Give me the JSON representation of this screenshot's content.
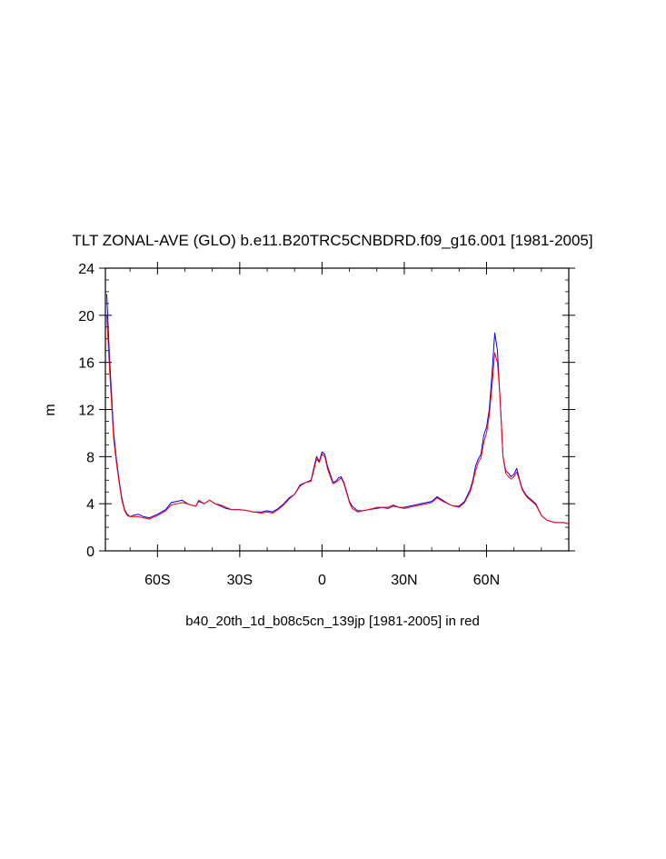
{
  "chart_data": {
    "type": "line",
    "title": "TLT ZONAL-AVE (GLO) b.e11.B20TRC5CNBDRD.f09_g16.001 [1981-2005]",
    "xlabel": "b40_20th_1d_b08c5cn_139jp [1981-2005] in red",
    "ylabel": "m",
    "xlim": [
      -79,
      90
    ],
    "ylim": [
      0,
      24
    ],
    "x_ticks": [
      {
        "value": -60,
        "label": "60S"
      },
      {
        "value": -30,
        "label": "30S"
      },
      {
        "value": 0,
        "label": "0"
      },
      {
        "value": 30,
        "label": "30N"
      },
      {
        "value": 60,
        "label": "60N"
      }
    ],
    "y_ticks": [
      0,
      4,
      8,
      12,
      16,
      20,
      24
    ],
    "grid": false,
    "series": [
      {
        "color": "#0000ff",
        "x": [
          -78.5,
          -77.5,
          -76,
          -75,
          -74,
          -73,
          -72,
          -71,
          -70,
          -69,
          -67,
          -65,
          -63,
          -60,
          -57,
          -55,
          -53,
          -51,
          -49,
          -48,
          -46,
          -45,
          -43,
          -41,
          -39,
          -37,
          -35,
          -33,
          -30,
          -27,
          -25,
          -22,
          -20,
          -18,
          -16,
          -14,
          -12,
          -10,
          -8,
          -6,
          -4,
          -3,
          -2,
          -1,
          0,
          1,
          2,
          3,
          4,
          5,
          6,
          7,
          8,
          9,
          10,
          11,
          13,
          15,
          17,
          20,
          22,
          24,
          26,
          28,
          30,
          32,
          34,
          36,
          38,
          40,
          42,
          44,
          46,
          48,
          50,
          52,
          54,
          55,
          56,
          57,
          58,
          59,
          60,
          61,
          62,
          63,
          64,
          65,
          66,
          67,
          68,
          69,
          70,
          71,
          72,
          73,
          74,
          75,
          76,
          77,
          78,
          80,
          82,
          85,
          88,
          90
        ],
        "y": [
          21.8,
          16.5,
          10.0,
          7.8,
          6.0,
          4.5,
          3.5,
          3.1,
          2.9,
          3.0,
          3.1,
          2.9,
          2.8,
          3.1,
          3.5,
          4.1,
          4.2,
          4.3,
          4.0,
          3.9,
          3.8,
          4.2,
          4.0,
          4.3,
          4.0,
          3.8,
          3.6,
          3.5,
          3.5,
          3.4,
          3.3,
          3.3,
          3.4,
          3.3,
          3.6,
          4.0,
          4.5,
          4.8,
          5.6,
          5.8,
          6.0,
          7.0,
          8.0,
          7.6,
          8.4,
          8.2,
          7.2,
          6.5,
          5.8,
          5.9,
          6.2,
          6.3,
          5.8,
          5.0,
          4.2,
          3.8,
          3.4,
          3.4,
          3.5,
          3.6,
          3.7,
          3.6,
          3.8,
          3.7,
          3.7,
          3.8,
          3.9,
          4.0,
          4.1,
          4.2,
          4.6,
          4.3,
          4.0,
          3.8,
          3.8,
          4.2,
          5.2,
          6.0,
          7.2,
          7.8,
          8.2,
          9.8,
          10.5,
          12.0,
          15.0,
          18.5,
          17.0,
          12.5,
          8.0,
          6.8,
          6.6,
          6.3,
          6.5,
          7.0,
          6.1,
          5.3,
          4.9,
          4.6,
          4.4,
          4.2,
          4.0,
          3.0,
          2.6,
          2.4,
          2.4,
          2.3
        ]
      },
      {
        "color": "#ff0000",
        "x": [
          -78.5,
          -77.5,
          -76,
          -75,
          -74,
          -73,
          -72,
          -71,
          -70,
          -69,
          -67,
          -65,
          -63,
          -60,
          -57,
          -55,
          -53,
          -51,
          -49,
          -48,
          -46,
          -45,
          -43,
          -41,
          -39,
          -37,
          -35,
          -33,
          -30,
          -27,
          -25,
          -22,
          -20,
          -18,
          -16,
          -14,
          -12,
          -10,
          -8,
          -6,
          -4,
          -3,
          -2,
          -1,
          0,
          1,
          2,
          3,
          4,
          5,
          6,
          7,
          8,
          9,
          10,
          11,
          13,
          15,
          17,
          20,
          22,
          24,
          26,
          28,
          30,
          32,
          34,
          36,
          38,
          40,
          42,
          44,
          46,
          48,
          50,
          52,
          54,
          55,
          56,
          57,
          58,
          59,
          60,
          61,
          62,
          63,
          64,
          65,
          66,
          67,
          68,
          69,
          70,
          71,
          72,
          73,
          74,
          75,
          76,
          77,
          78,
          80,
          82,
          85,
          88,
          90
        ],
        "y": [
          20.0,
          15.5,
          9.5,
          7.5,
          5.8,
          4.3,
          3.4,
          3.0,
          2.9,
          2.9,
          2.9,
          2.8,
          2.7,
          3.0,
          3.4,
          3.9,
          4.0,
          4.1,
          4.0,
          3.9,
          3.8,
          4.3,
          4.0,
          4.3,
          4.0,
          3.9,
          3.7,
          3.5,
          3.5,
          3.4,
          3.3,
          3.2,
          3.3,
          3.2,
          3.5,
          3.9,
          4.4,
          4.8,
          5.5,
          5.8,
          5.9,
          6.8,
          7.8,
          7.5,
          8.2,
          8.0,
          7.0,
          6.3,
          5.7,
          5.8,
          6.0,
          6.2,
          5.7,
          4.9,
          4.1,
          3.6,
          3.3,
          3.4,
          3.5,
          3.7,
          3.7,
          3.7,
          3.9,
          3.7,
          3.6,
          3.7,
          3.8,
          3.9,
          4.0,
          4.1,
          4.5,
          4.2,
          4.0,
          3.8,
          3.7,
          4.1,
          5.0,
          5.8,
          6.8,
          7.5,
          7.9,
          9.2,
          10.0,
          11.5,
          14.0,
          16.8,
          16.0,
          12.8,
          8.0,
          6.6,
          6.3,
          6.1,
          6.3,
          6.7,
          6.0,
          5.2,
          4.8,
          4.5,
          4.3,
          4.1,
          3.9,
          3.0,
          2.6,
          2.4,
          2.4,
          2.3
        ]
      }
    ]
  }
}
